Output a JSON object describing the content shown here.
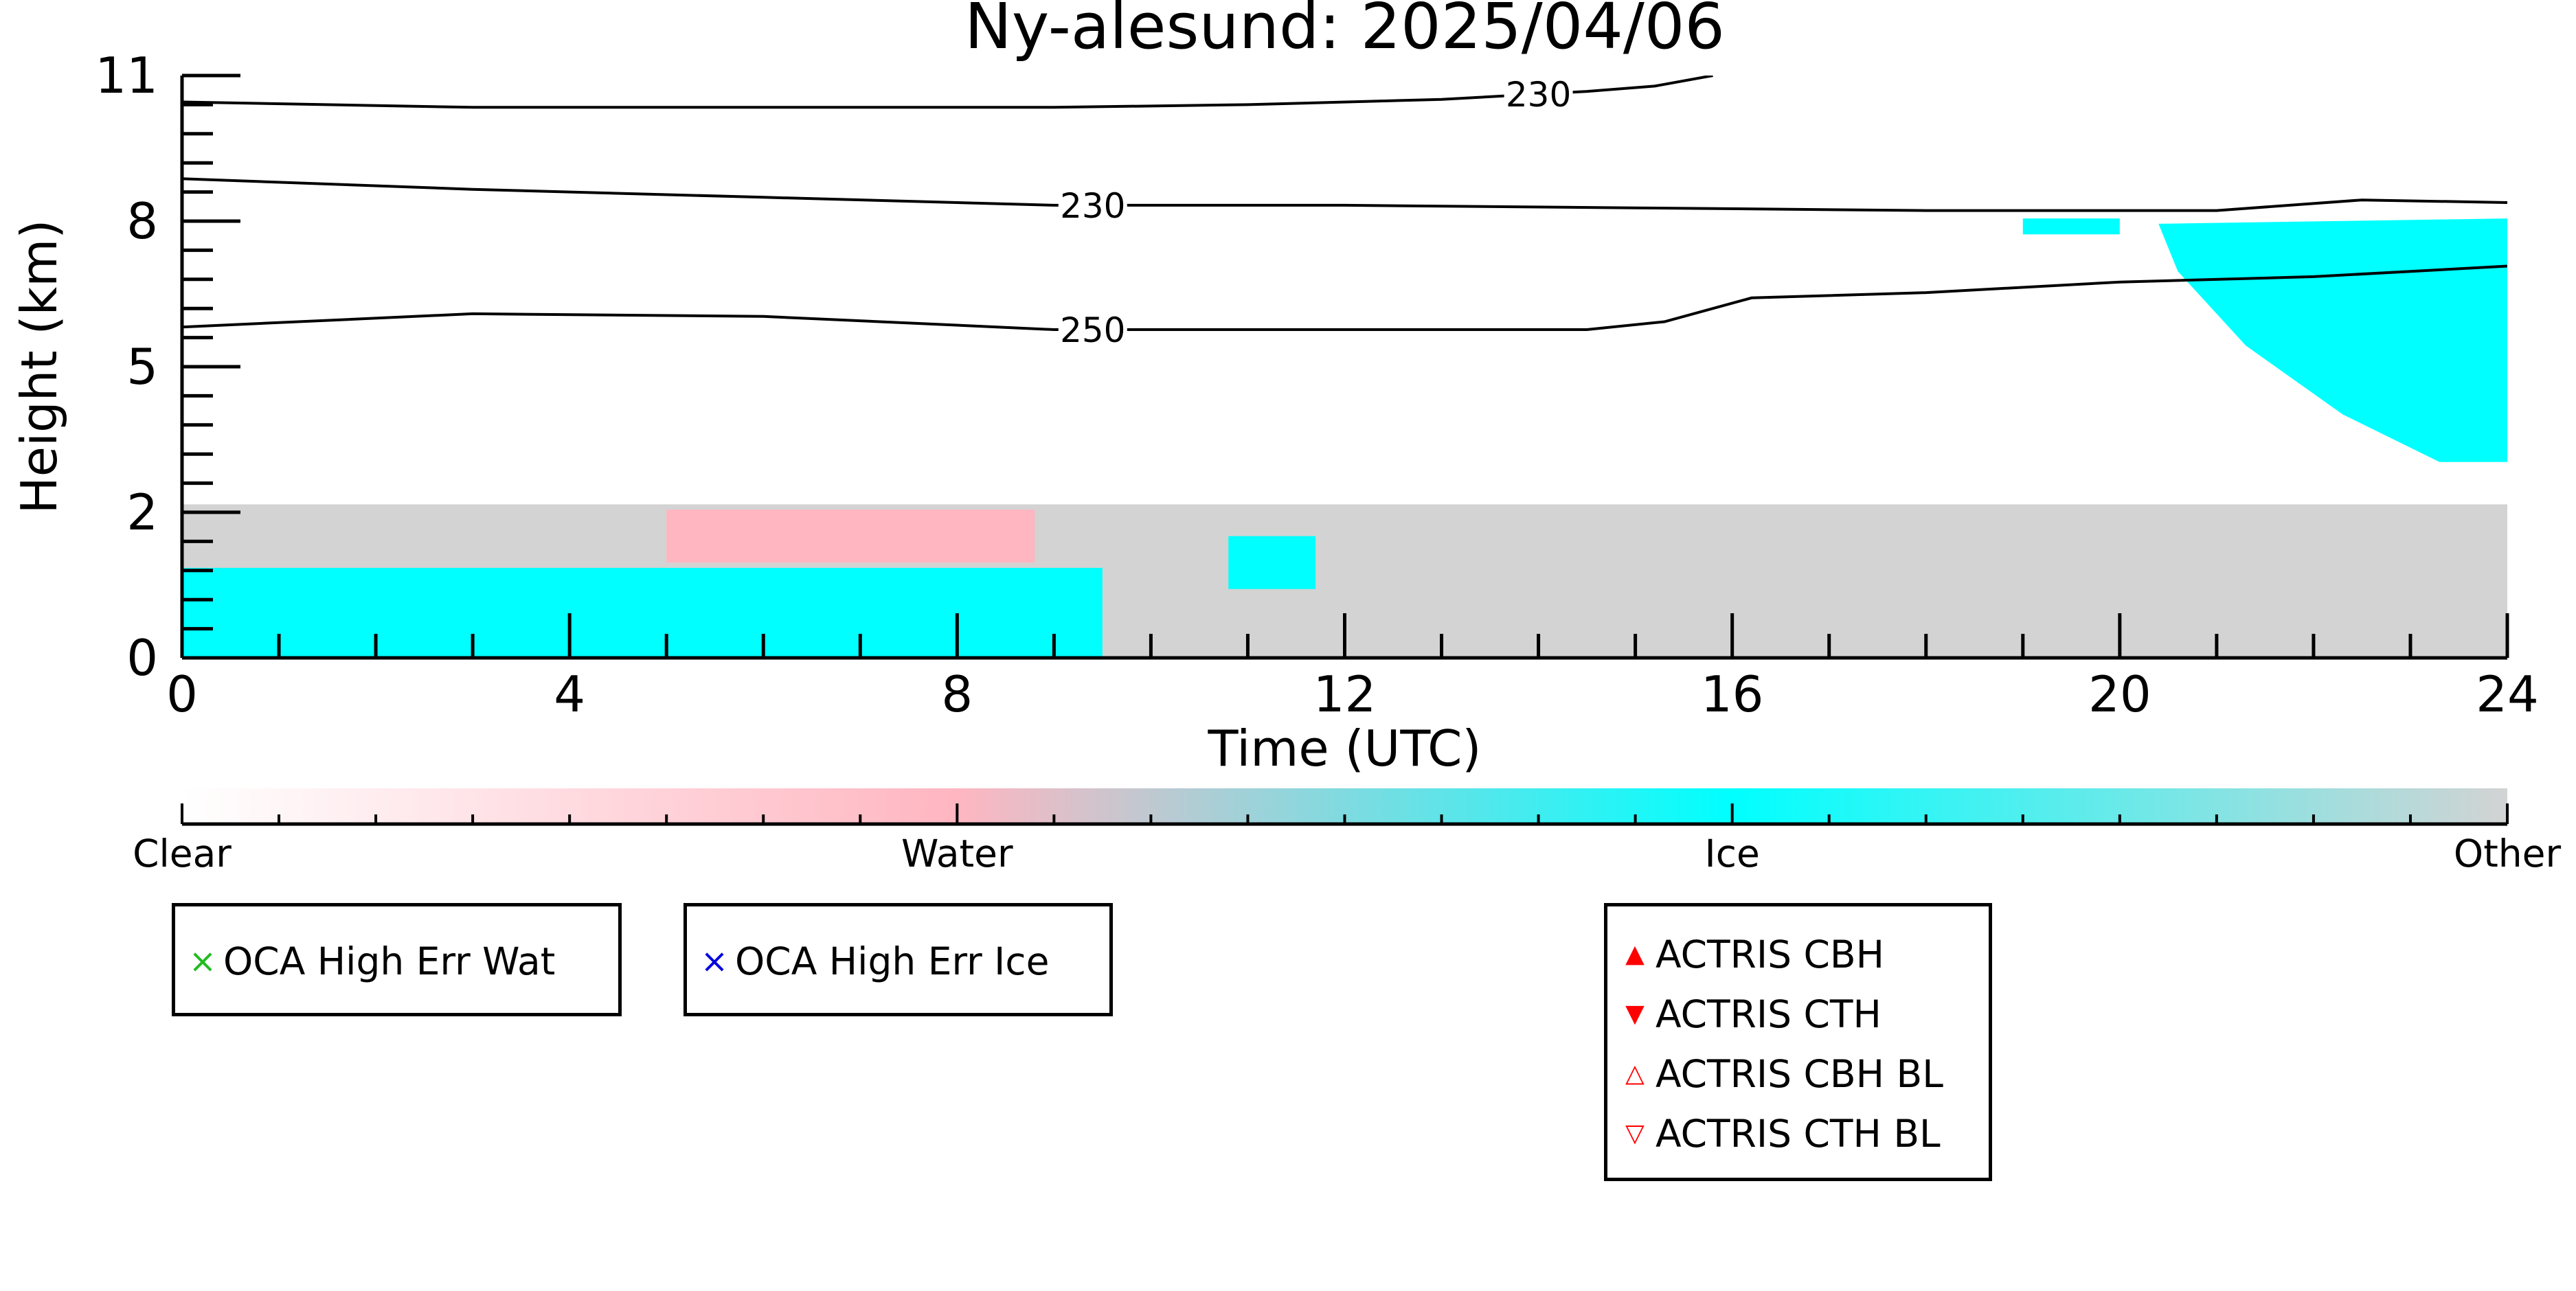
{
  "chart_data": {
    "type": "heatmap",
    "title": "Ny-alesund: 2025/04/06",
    "xlabel": "Time (UTC)",
    "ylabel": "Height (km)",
    "xlim": [
      0,
      24
    ],
    "ylim": [
      0,
      11
    ],
    "x_ticks": [
      "0",
      "4",
      "8",
      "12",
      "16",
      "20",
      "24"
    ],
    "x_tick_values": [
      0,
      4,
      8,
      12,
      16,
      20,
      24
    ],
    "y_ticks": [
      "0",
      "2",
      "5",
      "8",
      "11"
    ],
    "y_tick_values": [
      0,
      2.75,
      5.5,
      8.25,
      11
    ],
    "categories": [
      "Clear",
      "Water",
      "Ice",
      "Other"
    ],
    "category_colors": {
      "Clear": "#ffffff",
      "Water": "#ffb6c1",
      "Ice": "#00ffff",
      "Other": "#d3d3d3"
    },
    "regions": [
      {
        "class": "Other",
        "from_time": 0.0,
        "to_time": 24.0,
        "base_km": 0.0,
        "top_km": 2.9,
        "note_type": "background"
      },
      {
        "class": "Ice",
        "from_time": 0.0,
        "to_time": 9.5,
        "base_km": 0.0,
        "top_km": 1.7
      },
      {
        "class": "Water",
        "from_time": 5.0,
        "to_time": 8.8,
        "base_km": 1.8,
        "top_km": 2.8
      },
      {
        "class": "Ice",
        "from_time": 10.8,
        "to_time": 11.7,
        "base_km": 1.3,
        "top_km": 2.3
      },
      {
        "class": "Ice",
        "from_time": 20.4,
        "to_time": 24.0,
        "base_km": 3.7,
        "top_km": 8.4
      },
      {
        "class": "Ice",
        "from_time": 19.0,
        "to_time": 20.0,
        "base_km": 8.0,
        "top_km": 8.3
      }
    ],
    "contours": [
      {
        "label": "250",
        "label_at": 9.4,
        "points": [
          [
            0,
            6.25
          ],
          [
            3,
            6.5
          ],
          [
            6,
            6.45
          ],
          [
            9,
            6.2
          ],
          [
            12,
            6.2
          ],
          [
            14.5,
            6.2
          ],
          [
            15.3,
            6.35
          ],
          [
            16.2,
            6.8
          ],
          [
            18,
            6.9
          ],
          [
            20,
            7.1
          ],
          [
            22,
            7.2
          ],
          [
            24,
            7.4
          ]
        ]
      },
      {
        "label": "230",
        "label_at": 9.4,
        "points": [
          [
            0,
            9.05
          ],
          [
            3,
            8.85
          ],
          [
            6,
            8.7
          ],
          [
            9,
            8.55
          ],
          [
            12,
            8.55
          ],
          [
            15,
            8.5
          ],
          [
            18,
            8.45
          ],
          [
            21,
            8.45
          ],
          [
            22.5,
            8.65
          ],
          [
            24,
            8.6
          ]
        ]
      },
      {
        "label": "230",
        "label_at": 14.0,
        "points": [
          [
            0,
            10.5
          ],
          [
            3,
            10.4
          ],
          [
            6,
            10.4
          ],
          [
            9,
            10.4
          ],
          [
            11,
            10.45
          ],
          [
            13,
            10.55
          ],
          [
            14.5,
            10.7
          ],
          [
            15.2,
            10.8
          ],
          [
            15.8,
            11.0
          ]
        ]
      }
    ],
    "colorbar": {
      "labels": [
        "Clear",
        "Water",
        "Ice",
        "Other"
      ],
      "label_positions": [
        0,
        8,
        16,
        24
      ]
    },
    "legends": [
      {
        "entries": [
          {
            "marker": "×",
            "color": "#22bb22",
            "label": "OCA High Err Wat"
          }
        ]
      },
      {
        "entries": [
          {
            "marker": "×",
            "color": "#0000dd",
            "label": "OCA High Err Ice"
          }
        ]
      },
      {
        "entries": [
          {
            "marker": "▲",
            "color": "#ff0000",
            "label": "ACTRIS CBH"
          },
          {
            "marker": "▼",
            "color": "#ff0000",
            "label": "ACTRIS CTH"
          },
          {
            "marker": "△",
            "color": "#ff0000",
            "label": "ACTRIS CBH BL"
          },
          {
            "marker": "▽",
            "color": "#ff0000",
            "label": "ACTRIS CTH BL"
          }
        ]
      }
    ]
  }
}
